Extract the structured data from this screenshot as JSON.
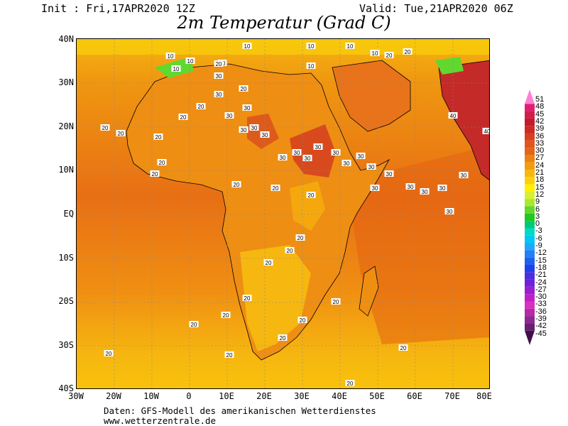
{
  "header": {
    "init": "Init : Fri,17APR2020 12Z",
    "valid": "Valid: Tue,21APR2020 06Z",
    "title": "2m Temperatur (Grad C)"
  },
  "axes": {
    "lat_labels": [
      "40N",
      "30N",
      "20N",
      "10N",
      "EQ",
      "10S",
      "20S",
      "30S",
      "40S"
    ],
    "lon_labels": [
      "30W",
      "20W",
      "10W",
      "0",
      "10E",
      "20E",
      "30E",
      "40E",
      "50E",
      "60E",
      "70E",
      "80E"
    ]
  },
  "colorbar": {
    "labels": [
      "51",
      "48",
      "45",
      "42",
      "39",
      "36",
      "33",
      "30",
      "27",
      "24",
      "21",
      "18",
      "15",
      "12",
      "9",
      "6",
      "3",
      "0",
      "-3",
      "-6",
      "-9",
      "-12",
      "-15",
      "-18",
      "-21",
      "-24",
      "-27",
      "-30",
      "-33",
      "-36",
      "-39",
      "-42",
      "-45"
    ],
    "colors": [
      "#ff7fd8",
      "#e0206f",
      "#d21e4f",
      "#c41a2c",
      "#cc2a25",
      "#d8401f",
      "#e0561c",
      "#e26618",
      "#ec8212",
      "#f29c0e",
      "#f6b810",
      "#fbd00a",
      "#fff000",
      "#d8f030",
      "#a8e830",
      "#60d830",
      "#20c820",
      "#00c878",
      "#00d8c8",
      "#00c8f0",
      "#20a8f8",
      "#2080f8",
      "#2060f0",
      "#2040e8",
      "#4830e0",
      "#7020d8",
      "#9820d0",
      "#c020c8",
      "#d830c0",
      "#b828a8",
      "#902890",
      "#682070",
      "#401048"
    ]
  },
  "map_labels": [
    "10",
    "10",
    "10",
    "10",
    "10",
    "20",
    "10",
    "10",
    "10",
    "20",
    "20",
    "20",
    "20",
    "20",
    "20",
    "20",
    "20",
    "20",
    "30",
    "30",
    "30",
    "30",
    "30",
    "30",
    "30",
    "30",
    "30",
    "30",
    "30",
    "30",
    "30",
    "30",
    "30",
    "30",
    "30",
    "30",
    "30",
    "30",
    "30",
    "30",
    "40",
    "40",
    "20",
    "20",
    "20",
    "20",
    "20",
    "20",
    "20",
    "20",
    "20",
    "20",
    "20",
    "20",
    "20",
    "20",
    "20",
    "20",
    "20",
    "20"
  ],
  "footer": {
    "line1": "Daten: GFS-Modell des amerikanischen Wetterdienstes",
    "line2": "www.wetterzentrale.de"
  }
}
